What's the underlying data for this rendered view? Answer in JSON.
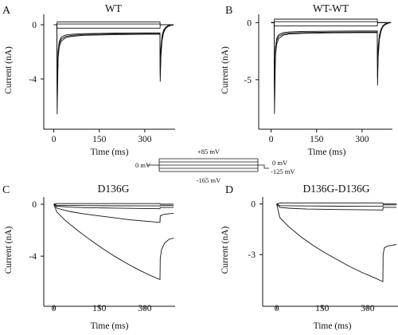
{
  "chart_data": [
    {
      "panel": "A",
      "title": "WT",
      "type": "line",
      "xlabel": "Time (ms)",
      "ylabel": "Current (nA)",
      "xlim": [
        -20,
        400
      ],
      "ylim": [
        -7,
        1
      ],
      "xticks": [
        0,
        150,
        300
      ],
      "yticks": [
        0,
        -4
      ],
      "series": [
        {
          "x": [
            0,
            10,
            11,
            14,
            18,
            25,
            40,
            60,
            100,
            200,
            300,
            350,
            351,
            353,
            357,
            362,
            368,
            375,
            385,
            395
          ],
          "y": [
            0,
            0,
            -6.6,
            -2.5,
            -1.6,
            -1.2,
            -0.95,
            -0.85,
            -0.78,
            -0.73,
            -0.7,
            -0.7,
            -4.2,
            -2.4,
            -1.2,
            -0.6,
            -0.3,
            -0.15,
            -0.05,
            0
          ]
        },
        {
          "x": [
            0,
            10,
            11,
            14,
            18,
            25,
            40,
            60,
            100,
            200,
            300,
            350,
            351,
            353,
            357,
            362,
            368,
            375,
            385,
            395
          ],
          "y": [
            0,
            0,
            -5.2,
            -2.2,
            -1.4,
            -1.05,
            -0.85,
            -0.78,
            -0.72,
            -0.68,
            -0.66,
            -0.66,
            -3.8,
            -2.1,
            -1.0,
            -0.5,
            -0.25,
            -0.1,
            -0.03,
            0
          ]
        },
        {
          "x": [
            0,
            10,
            11,
            14,
            18,
            25,
            40,
            60,
            100,
            200,
            300,
            350,
            351,
            353,
            357,
            362,
            368,
            375,
            385,
            395
          ],
          "y": [
            0,
            0,
            -4.0,
            -1.9,
            -1.2,
            -0.9,
            -0.75,
            -0.7,
            -0.66,
            -0.62,
            -0.6,
            -0.6,
            -3.3,
            -1.8,
            -0.8,
            -0.4,
            -0.2,
            -0.08,
            -0.02,
            0
          ]
        },
        {
          "x": [
            0,
            10,
            11,
            300,
            350,
            351,
            395
          ],
          "y": [
            0,
            0,
            -0.25,
            -0.25,
            -0.25,
            0,
            0
          ]
        },
        {
          "x": [
            0,
            10,
            11,
            300,
            350,
            351,
            395
          ],
          "y": [
            0,
            0,
            0.05,
            0.05,
            0.05,
            0,
            0
          ]
        },
        {
          "x": [
            0,
            10,
            11,
            300,
            350,
            351,
            395
          ],
          "y": [
            0,
            0,
            0.2,
            0.2,
            0.2,
            0,
            0
          ]
        }
      ]
    },
    {
      "panel": "B",
      "title": "WT-WT",
      "type": "line",
      "xlabel": "Time (ms)",
      "ylabel": "Current (nA)",
      "xlim": [
        -20,
        400
      ],
      "ylim": [
        -8.5,
        1
      ],
      "xticks": [
        0,
        150,
        300
      ],
      "yticks": [
        0,
        -5
      ],
      "series": [
        {
          "x": [
            0,
            10,
            11,
            14,
            18,
            25,
            40,
            60,
            100,
            200,
            300,
            350,
            351,
            353,
            357,
            362,
            368,
            375,
            385,
            395
          ],
          "y": [
            0,
            0,
            -8.0,
            -3.0,
            -1.9,
            -1.4,
            -1.1,
            -1.0,
            -0.95,
            -0.9,
            -0.88,
            -0.88,
            -5.5,
            -3.0,
            -1.5,
            -0.8,
            -0.4,
            -0.2,
            -0.06,
            0
          ]
        },
        {
          "x": [
            0,
            10,
            11,
            14,
            18,
            25,
            40,
            60,
            100,
            200,
            300,
            350,
            351,
            353,
            357,
            362,
            368,
            375,
            385,
            395
          ],
          "y": [
            0,
            0,
            -6.5,
            -2.6,
            -1.6,
            -1.2,
            -1.0,
            -0.92,
            -0.88,
            -0.84,
            -0.82,
            -0.82,
            -4.8,
            -2.6,
            -1.3,
            -0.7,
            -0.35,
            -0.15,
            -0.05,
            0
          ]
        },
        {
          "x": [
            0,
            10,
            11,
            14,
            18,
            25,
            40,
            60,
            100,
            200,
            300,
            350,
            351,
            353,
            357,
            362,
            368,
            375,
            385,
            395
          ],
          "y": [
            0,
            0,
            -5.0,
            -2.2,
            -1.4,
            -1.05,
            -0.88,
            -0.82,
            -0.78,
            -0.75,
            -0.73,
            -0.73,
            -4.0,
            -2.2,
            -1.1,
            -0.6,
            -0.3,
            -0.12,
            -0.04,
            0
          ]
        },
        {
          "x": [
            0,
            10,
            11,
            300,
            350,
            351,
            395
          ],
          "y": [
            0,
            0,
            -0.3,
            -0.3,
            -0.3,
            0,
            0
          ]
        },
        {
          "x": [
            0,
            10,
            11,
            300,
            350,
            351,
            395
          ],
          "y": [
            0,
            0,
            0.08,
            0.08,
            0.08,
            0,
            0
          ]
        },
        {
          "x": [
            0,
            10,
            11,
            300,
            350,
            351,
            395
          ],
          "y": [
            0,
            0,
            0.3,
            0.3,
            0.3,
            0,
            0
          ]
        }
      ]
    },
    {
      "panel": "C",
      "title": "D136G",
      "type": "line",
      "xlabel": "Time (ms)",
      "ylabel": "Current (nA)",
      "xlim": [
        -20,
        400
      ],
      "ylim": [
        -7,
        0.8
      ],
      "xticks": [
        0,
        150,
        300
      ],
      "yticks": [
        0,
        -4
      ],
      "series": [
        {
          "x": [
            0,
            10,
            40,
            80,
            120,
            160,
            200,
            240,
            280,
            320,
            350,
            351,
            355,
            365,
            380,
            395
          ],
          "y": [
            0,
            -0.6,
            -1.3,
            -2.05,
            -2.75,
            -3.4,
            -4.0,
            -4.55,
            -5.05,
            -5.5,
            -5.8,
            -4.2,
            -3.5,
            -3.0,
            -2.7,
            -2.6
          ]
        },
        {
          "x": [
            0,
            10,
            50,
            100,
            150,
            200,
            250,
            300,
            350,
            351,
            360,
            375,
            395
          ],
          "y": [
            0,
            -0.3,
            -0.55,
            -0.75,
            -0.9,
            -1.05,
            -1.2,
            -1.3,
            -1.4,
            -0.9,
            -0.8,
            -0.75,
            -0.7
          ]
        },
        {
          "x": [
            0,
            10,
            50,
            100,
            200,
            300,
            350,
            351,
            370,
            395
          ],
          "y": [
            0,
            -0.15,
            -0.22,
            -0.26,
            -0.3,
            -0.33,
            -0.35,
            -0.25,
            -0.25,
            -0.25
          ]
        },
        {
          "x": [
            0,
            10,
            100,
            200,
            300,
            350,
            351,
            395
          ],
          "y": [
            0,
            -0.08,
            -0.1,
            -0.12,
            -0.13,
            -0.13,
            -0.1,
            -0.1
          ]
        },
        {
          "x": [
            0,
            10,
            100,
            200,
            300,
            350,
            351,
            395
          ],
          "y": [
            0,
            0.05,
            0.05,
            0.05,
            0.05,
            0.05,
            0,
            0
          ]
        }
      ]
    },
    {
      "panel": "D",
      "title": "D136G-D136G",
      "type": "line",
      "xlabel": "Time (ms)",
      "ylabel": "Current (nA)",
      "xlim": [
        -20,
        400
      ],
      "ylim": [
        -5.4,
        0.6
      ],
      "xticks": [
        0,
        150,
        300
      ],
      "yticks": [
        0,
        -3
      ],
      "series": [
        {
          "x": [
            0,
            10,
            40,
            80,
            120,
            160,
            200,
            240,
            280,
            320,
            350,
            351,
            355,
            365,
            380,
            395
          ],
          "y": [
            0,
            -0.8,
            -1.35,
            -1.95,
            -2.45,
            -2.9,
            -3.3,
            -3.7,
            -4.05,
            -4.35,
            -4.6,
            -3.0,
            -2.6,
            -2.5,
            -2.45,
            -2.4
          ]
        },
        {
          "x": [
            0,
            10,
            40,
            100,
            200,
            300,
            350,
            351,
            395
          ],
          "y": [
            0,
            -0.2,
            -0.25,
            -0.3,
            -0.33,
            -0.35,
            -0.36,
            -0.2,
            -0.2
          ]
        },
        {
          "x": [
            0,
            10,
            100,
            200,
            300,
            350,
            351,
            395
          ],
          "y": [
            0,
            -0.1,
            -0.12,
            -0.13,
            -0.14,
            -0.14,
            -0.05,
            -0.05
          ]
        },
        {
          "x": [
            0,
            10,
            100,
            200,
            300,
            350,
            351,
            395
          ],
          "y": [
            0,
            0.05,
            0.05,
            0.05,
            0.05,
            0.05,
            0,
            0
          ]
        }
      ]
    }
  ],
  "protocol": {
    "hold_label": "0 mV",
    "top_label": "+85 mV",
    "bottom_label": "-165 mV",
    "post_label": "0 mV",
    "tail_label": "-125 mV"
  }
}
